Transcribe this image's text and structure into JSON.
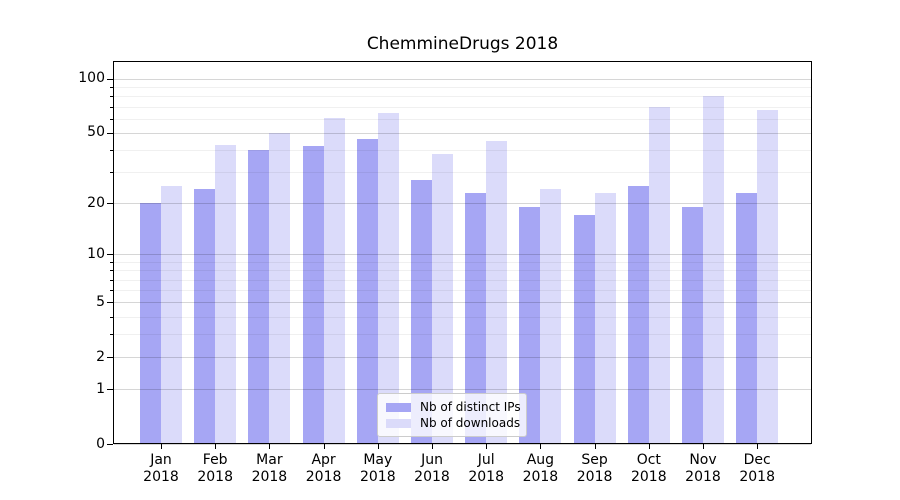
{
  "chart_data": {
    "type": "bar",
    "title": "ChemmineDrugs 2018",
    "categories": [
      "Jan",
      "Feb",
      "Mar",
      "Apr",
      "May",
      "Jun",
      "Jul",
      "Aug",
      "Sep",
      "Oct",
      "Nov",
      "Dec"
    ],
    "category_sublabel": "2018",
    "series": [
      {
        "name": "Nb of distinct IPs",
        "color": "#a6a6f4",
        "values": [
          20,
          24,
          40,
          42,
          46,
          27,
          23,
          19,
          17,
          25,
          19,
          23
        ]
      },
      {
        "name": "Nb of downloads",
        "color": "#dbdbfa",
        "values": [
          25,
          43,
          50,
          61,
          65,
          38,
          45,
          24,
          23,
          70,
          80,
          67
        ]
      }
    ],
    "y_axis": {
      "scale": "log1p",
      "major_ticks": [
        0,
        1,
        2,
        5,
        10,
        20,
        50,
        100
      ],
      "minor_ticks": [
        3,
        4,
        6,
        7,
        8,
        9,
        30,
        40,
        60,
        70,
        80,
        90
      ],
      "ylim": [
        0,
        125
      ]
    },
    "grid": true,
    "legend": {
      "position": "bottom-center"
    },
    "colors": {
      "background": "#ffffff",
      "spine": "#000000",
      "text": "#000000",
      "grid_major": "rgba(0,0,0,0.16)",
      "grid_minor": "rgba(0,0,0,0.06)"
    }
  }
}
